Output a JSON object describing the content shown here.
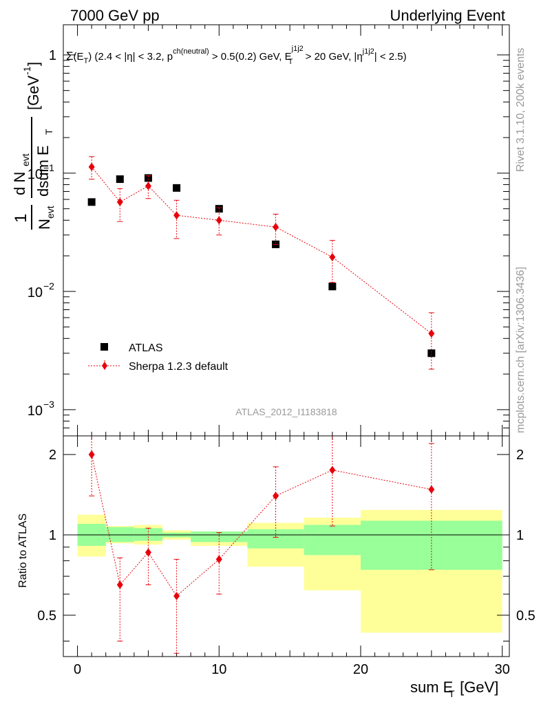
{
  "header": {
    "left": "7000 GeV pp",
    "right": "Underlying Event"
  },
  "side": {
    "rivet": "Rivet 3.1.10,  200k events",
    "mcplots": "mcplots.cern.ch [arXiv:1306.3436]"
  },
  "watermark": "ATLAS_2012_I1183818",
  "ylabel_main": {
    "one": "1",
    "n_evt": "N",
    "evt_sub": "evt",
    "d_n": "d N",
    "dsum": "dsum E",
    "t_sub": "T",
    "unit": "[GeV",
    "unit_sup": "-1",
    "unit_close": "]"
  },
  "ylabel_ratio": "Ratio to ATLAS",
  "xlabel": {
    "main": "sum E",
    "sub": "T",
    "unit": " [GeV]"
  },
  "main_ticks": [
    {
      "value": 1,
      "label": "1"
    },
    {
      "value": 0.1,
      "base": "10",
      "exp": "−1"
    },
    {
      "value": 0.01,
      "base": "10",
      "exp": "−2"
    },
    {
      "value": 0.001,
      "base": "10",
      "exp": "−3"
    }
  ],
  "ratio_ticks": [
    {
      "value": 0.5,
      "label": "0.5"
    },
    {
      "value": 1,
      "label": "1"
    },
    {
      "value": 2,
      "label": "2"
    }
  ],
  "x_ticks": [
    {
      "value": 0,
      "label": "0"
    },
    {
      "value": 10,
      "label": "10"
    },
    {
      "value": 20,
      "label": "20"
    },
    {
      "value": 30,
      "label": "30"
    }
  ],
  "plot_title": {
    "sigma": "Σ",
    "part1": "(E",
    "sub_t": "T",
    "part2": ") (2.4 < |η| < 3.2, p",
    "sup_ch": "ch(neutral)",
    "part3": " > 0.5(0.2) GeV, E",
    "sup_j1": "j1j2",
    "sub_t2": "T",
    "part4": " > 20 GeV, |η",
    "sup_j2": "j1j2",
    "part5": "| < 2.5)"
  },
  "legend": {
    "atlas": "ATLAS",
    "sherpa": "Sherpa 1.2.3 default"
  },
  "colors": {
    "sherpa": "#e8000b",
    "band_inner": "#99ff99",
    "band_outer": "#ffff99",
    "axis": "#000000",
    "gray": "#999999"
  },
  "chart_data": {
    "type": "scatter",
    "xlim": [
      -1,
      30.5
    ],
    "ylim_main": [
      0.0006,
      1.8
    ],
    "ylim_ratio": [
      0.35,
      2.35
    ],
    "main_scale": "log",
    "ratio_scale": "log",
    "xlabel": "sum E_T [GeV]",
    "series": [
      {
        "name": "ATLAS",
        "x": [
          1,
          3,
          5,
          7,
          10,
          14,
          18,
          25
        ],
        "y": [
          0.057,
          0.089,
          0.091,
          0.075,
          0.05,
          0.025,
          0.011,
          0.003
        ]
      },
      {
        "name": "Sherpa 1.2.3 default",
        "x": [
          1,
          3,
          5,
          7,
          10,
          14,
          18,
          25
        ],
        "y": [
          0.113,
          0.057,
          0.078,
          0.044,
          0.04,
          0.035,
          0.0195,
          0.0044
        ],
        "err_lo": [
          0.089,
          0.039,
          0.061,
          0.028,
          0.03,
          0.025,
          0.0119,
          0.0022
        ],
        "err_hi": [
          0.138,
          0.074,
          0.095,
          0.059,
          0.051,
          0.045,
          0.027,
          0.0066
        ]
      }
    ],
    "ratio": {
      "x": [
        1,
        3,
        5,
        7,
        10,
        14,
        18,
        25
      ],
      "y": [
        2.0,
        0.65,
        0.86,
        0.59,
        0.81,
        1.4,
        1.75,
        1.48
      ],
      "err_lo": [
        1.4,
        0.4,
        0.65,
        0.36,
        0.6,
        0.98,
        1.08,
        0.74
      ],
      "err_hi": [
        2.35,
        0.82,
        1.06,
        0.81,
        1.02,
        1.8,
        2.35,
        2.2
      ]
    },
    "bands": [
      {
        "x0": 0,
        "x1": 2,
        "inner_lo": 0.91,
        "inner_hi": 1.1,
        "outer_lo": 0.83,
        "outer_hi": 1.19
      },
      {
        "x0": 2,
        "x1": 4,
        "inner_lo": 0.94,
        "inner_hi": 1.07,
        "outer_lo": 0.93,
        "outer_hi": 1.08
      },
      {
        "x0": 4,
        "x1": 6,
        "inner_lo": 0.95,
        "inner_hi": 1.06,
        "outer_lo": 0.92,
        "outer_hi": 1.09
      },
      {
        "x0": 6,
        "x1": 8,
        "inner_lo": 0.98,
        "inner_hi": 1.02,
        "outer_lo": 0.96,
        "outer_hi": 1.04
      },
      {
        "x0": 8,
        "x1": 12,
        "inner_lo": 0.94,
        "inner_hi": 1.03,
        "outer_lo": 0.91,
        "outer_hi": 1.03
      },
      {
        "x0": 12,
        "x1": 16,
        "inner_lo": 0.89,
        "inner_hi": 1.05,
        "outer_lo": 0.76,
        "outer_hi": 1.11
      },
      {
        "x0": 16,
        "x1": 20,
        "inner_lo": 0.84,
        "inner_hi": 1.09,
        "outer_lo": 0.62,
        "outer_hi": 1.16
      },
      {
        "x0": 20,
        "x1": 30,
        "inner_lo": 0.74,
        "inner_hi": 1.13,
        "outer_lo": 0.43,
        "outer_hi": 1.24
      }
    ]
  }
}
